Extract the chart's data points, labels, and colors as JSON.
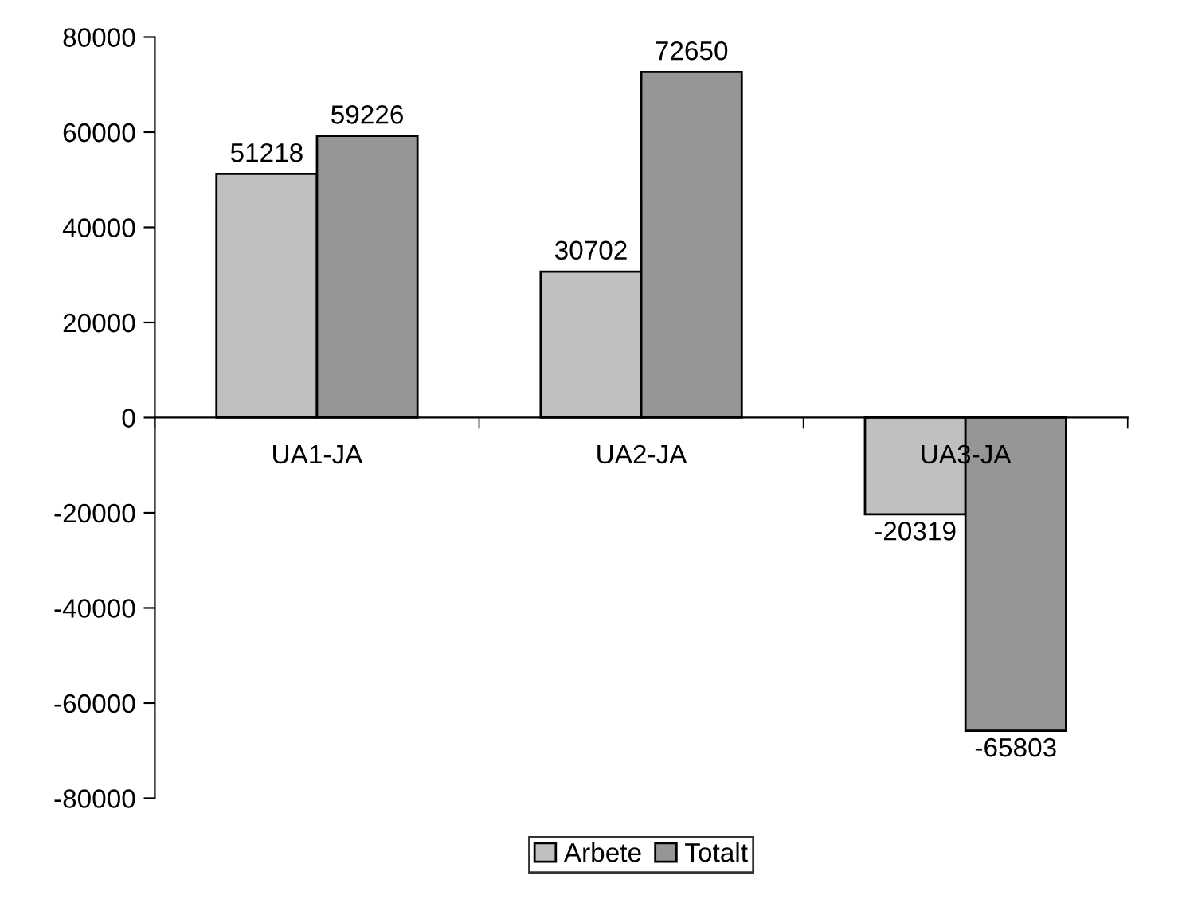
{
  "chart_data": {
    "type": "bar",
    "categories": [
      "UA1-JA",
      "UA2-JA",
      "UA3-JA"
    ],
    "series": [
      {
        "name": "Arbete",
        "color": "#c0c0c0",
        "values": [
          51218,
          30702,
          -20319
        ]
      },
      {
        "name": "Totalt",
        "color": "#969696",
        "values": [
          59226,
          72650,
          -65803
        ]
      }
    ],
    "ylim": [
      -80000,
      80000
    ],
    "yticks": [
      -80000,
      -60000,
      -40000,
      -20000,
      0,
      20000,
      40000,
      60000,
      80000
    ],
    "grid": false,
    "legend": "bottom",
    "data_labels": true
  }
}
